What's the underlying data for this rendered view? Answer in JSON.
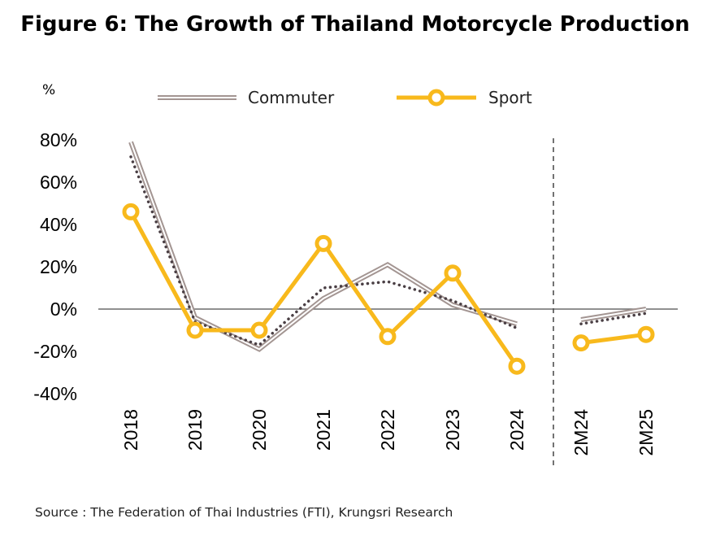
{
  "colors": {
    "commuter_outer": "#a39592",
    "commuter_inner": "#ffffff",
    "sport": "#f8b91c",
    "trend": "#4a3f44",
    "zero_line": "#6b6b6b",
    "divider": "#444444"
  },
  "chart_data": {
    "type": "line",
    "title": "Figure 6: The Growth of Thailand Motorcycle Production",
    "ylabel": "%",
    "xlabel": "",
    "source": "Source : The Federation of Thai Industries (FTI), Krungsri Research",
    "ylim": [
      -40,
      80
    ],
    "yticks": [
      80,
      60,
      40,
      20,
      0,
      -20,
      -40
    ],
    "ytick_labels": [
      "80%",
      "60%",
      "40%",
      "20%",
      "0%",
      "-20%",
      "-40%"
    ],
    "grid": false,
    "legend_position": "top",
    "categories": [
      "2018",
      "2019",
      "2020",
      "2021",
      "2022",
      "2023",
      "2024",
      "2M24",
      "2M25"
    ],
    "segments": [
      [
        0,
        6
      ],
      [
        7,
        8
      ]
    ],
    "series": [
      {
        "name": "Commuter",
        "style": "double-line",
        "values": [
          79,
          -4,
          -19,
          5,
          21,
          2,
          -7,
          -5,
          0
        ]
      },
      {
        "name": "Sport",
        "style": "line-circle-markers",
        "values": [
          46,
          -10,
          -10,
          31,
          -13,
          17,
          -27,
          -16,
          -12
        ]
      },
      {
        "style": "dotted-trend",
        "values": [
          72,
          -6,
          -17,
          10,
          13,
          4,
          -9,
          -7,
          -2
        ]
      }
    ]
  }
}
